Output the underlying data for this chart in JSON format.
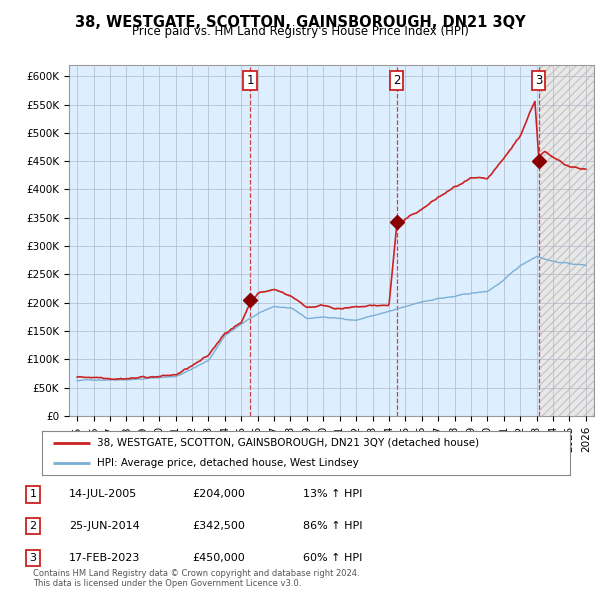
{
  "title": "38, WESTGATE, SCOTTON, GAINSBOROUGH, DN21 3QY",
  "subtitle": "Price paid vs. HM Land Registry's House Price Index (HPI)",
  "hpi_color": "#7bafd4",
  "price_color": "#cc2222",
  "sale_dates_num": [
    2005.54,
    2014.48,
    2023.13
  ],
  "sale_prices": [
    204000,
    342500,
    450000
  ],
  "sale_labels": [
    "1",
    "2",
    "3"
  ],
  "legend_line1": "38, WESTGATE, SCOTTON, GAINSBOROUGH, DN21 3QY (detached house)",
  "legend_line2": "HPI: Average price, detached house, West Lindsey",
  "table_rows": [
    [
      "1",
      "14-JUL-2005",
      "£204,000",
      "13% ↑ HPI"
    ],
    [
      "2",
      "25-JUN-2014",
      "£342,500",
      "86% ↑ HPI"
    ],
    [
      "3",
      "17-FEB-2023",
      "£450,000",
      "60% ↑ HPI"
    ]
  ],
  "footnote": "Contains HM Land Registry data © Crown copyright and database right 2024.\nThis data is licensed under the Open Government Licence v3.0.",
  "ylim": [
    0,
    620000
  ],
  "xlim_start": 1994.5,
  "xlim_end": 2026.5,
  "yticks": [
    0,
    50000,
    100000,
    150000,
    200000,
    250000,
    300000,
    350000,
    400000,
    450000,
    500000,
    550000,
    600000
  ],
  "ytick_labels": [
    "£0",
    "£50K",
    "£100K",
    "£150K",
    "£200K",
    "£250K",
    "£300K",
    "£350K",
    "£400K",
    "£450K",
    "£500K",
    "£550K",
    "£600K"
  ],
  "xticks": [
    1995,
    1996,
    1997,
    1998,
    1999,
    2000,
    2001,
    2002,
    2003,
    2004,
    2005,
    2006,
    2007,
    2008,
    2009,
    2010,
    2011,
    2012,
    2013,
    2014,
    2015,
    2016,
    2017,
    2018,
    2019,
    2020,
    2021,
    2022,
    2023,
    2024,
    2025,
    2026
  ],
  "shade_blue_start": 1994.5,
  "shade_blue_end": 2023.13,
  "shade_hatch_start": 2023.13,
  "shade_hatch_end": 2026.5
}
